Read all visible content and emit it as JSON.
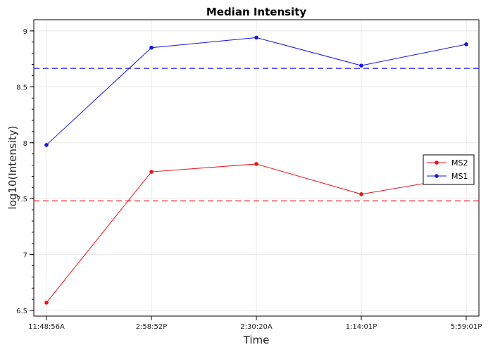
{
  "chart_data": {
    "type": "line",
    "title": "Median Intensity",
    "xlabel": "Time",
    "ylabel": "log10(Intensity)",
    "categories": [
      "11:48:56A",
      "2:58:52P",
      "2:30:20A",
      "1:14:01P",
      "5:59:01P"
    ],
    "ylim": [
      6.45,
      9.1
    ],
    "yticks": [
      6.5,
      7,
      7.5,
      8,
      8.5,
      9
    ],
    "ytick_labels": [
      "6.5",
      "7",
      "7.5",
      "8",
      "8.5",
      "9"
    ],
    "grid": true,
    "legend_position": "right",
    "series": [
      {
        "name": "MS2",
        "color": "#e8141a",
        "values": [
          6.57,
          7.74,
          7.81,
          7.54,
          7.7
        ],
        "median_line": 7.48
      },
      {
        "name": "MS1",
        "color": "#1414e8",
        "values": [
          7.98,
          8.85,
          8.94,
          8.69,
          8.88
        ],
        "median_line": 8.665
      }
    ]
  }
}
